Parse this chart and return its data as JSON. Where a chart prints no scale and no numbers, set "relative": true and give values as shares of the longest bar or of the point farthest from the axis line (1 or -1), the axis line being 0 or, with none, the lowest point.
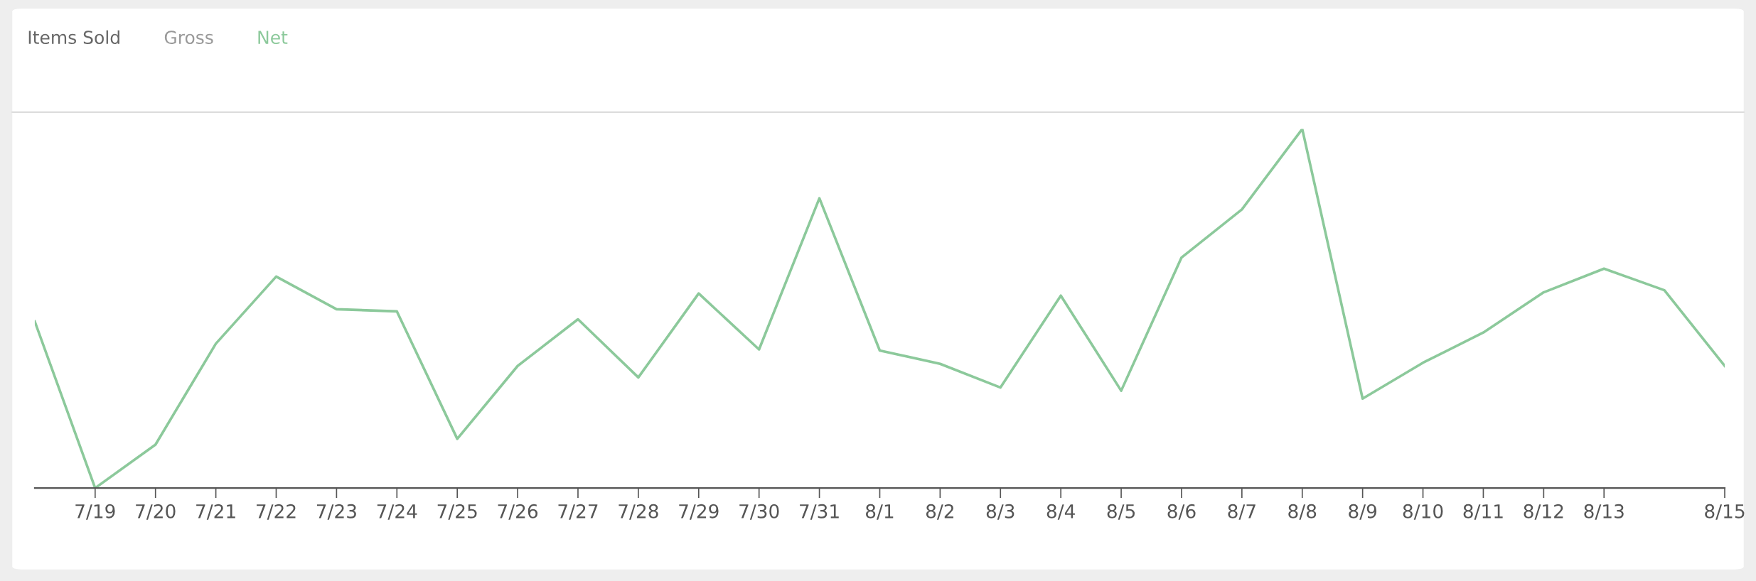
{
  "chart_data": {
    "type": "line",
    "relative": true,
    "categories": [
      null,
      "7/19",
      "7/20",
      "7/21",
      "7/22",
      "7/23",
      "7/24",
      "7/25",
      "7/26",
      "7/27",
      "7/28",
      "7/29",
      "7/30",
      "7/31",
      "8/1",
      "8/2",
      "8/3",
      "8/4",
      "8/5",
      "8/6",
      "8/7",
      "8/8",
      "8/9",
      "8/10",
      "8/11",
      "8/12",
      "8/13",
      null,
      "8/15"
    ],
    "series": [
      {
        "name": "Net",
        "color": "#8cc99b",
        "values": [
          0.464,
          0,
          0.121,
          0.402,
          0.589,
          0.498,
          0.492,
          0.137,
          0.34,
          0.47,
          0.308,
          0.542,
          0.386,
          0.807,
          0.383,
          0.346,
          0.28,
          0.536,
          0.271,
          0.642,
          0.776,
          1,
          0.249,
          0.349,
          0.433,
          0.545,
          0.611,
          0.551,
          0.34
        ]
      }
    ],
    "annotations": [
      "Items Sold",
      "Gross"
    ],
    "legend": "top left",
    "grid": false,
    "marker": "none",
    "line_style": "solid"
  }
}
